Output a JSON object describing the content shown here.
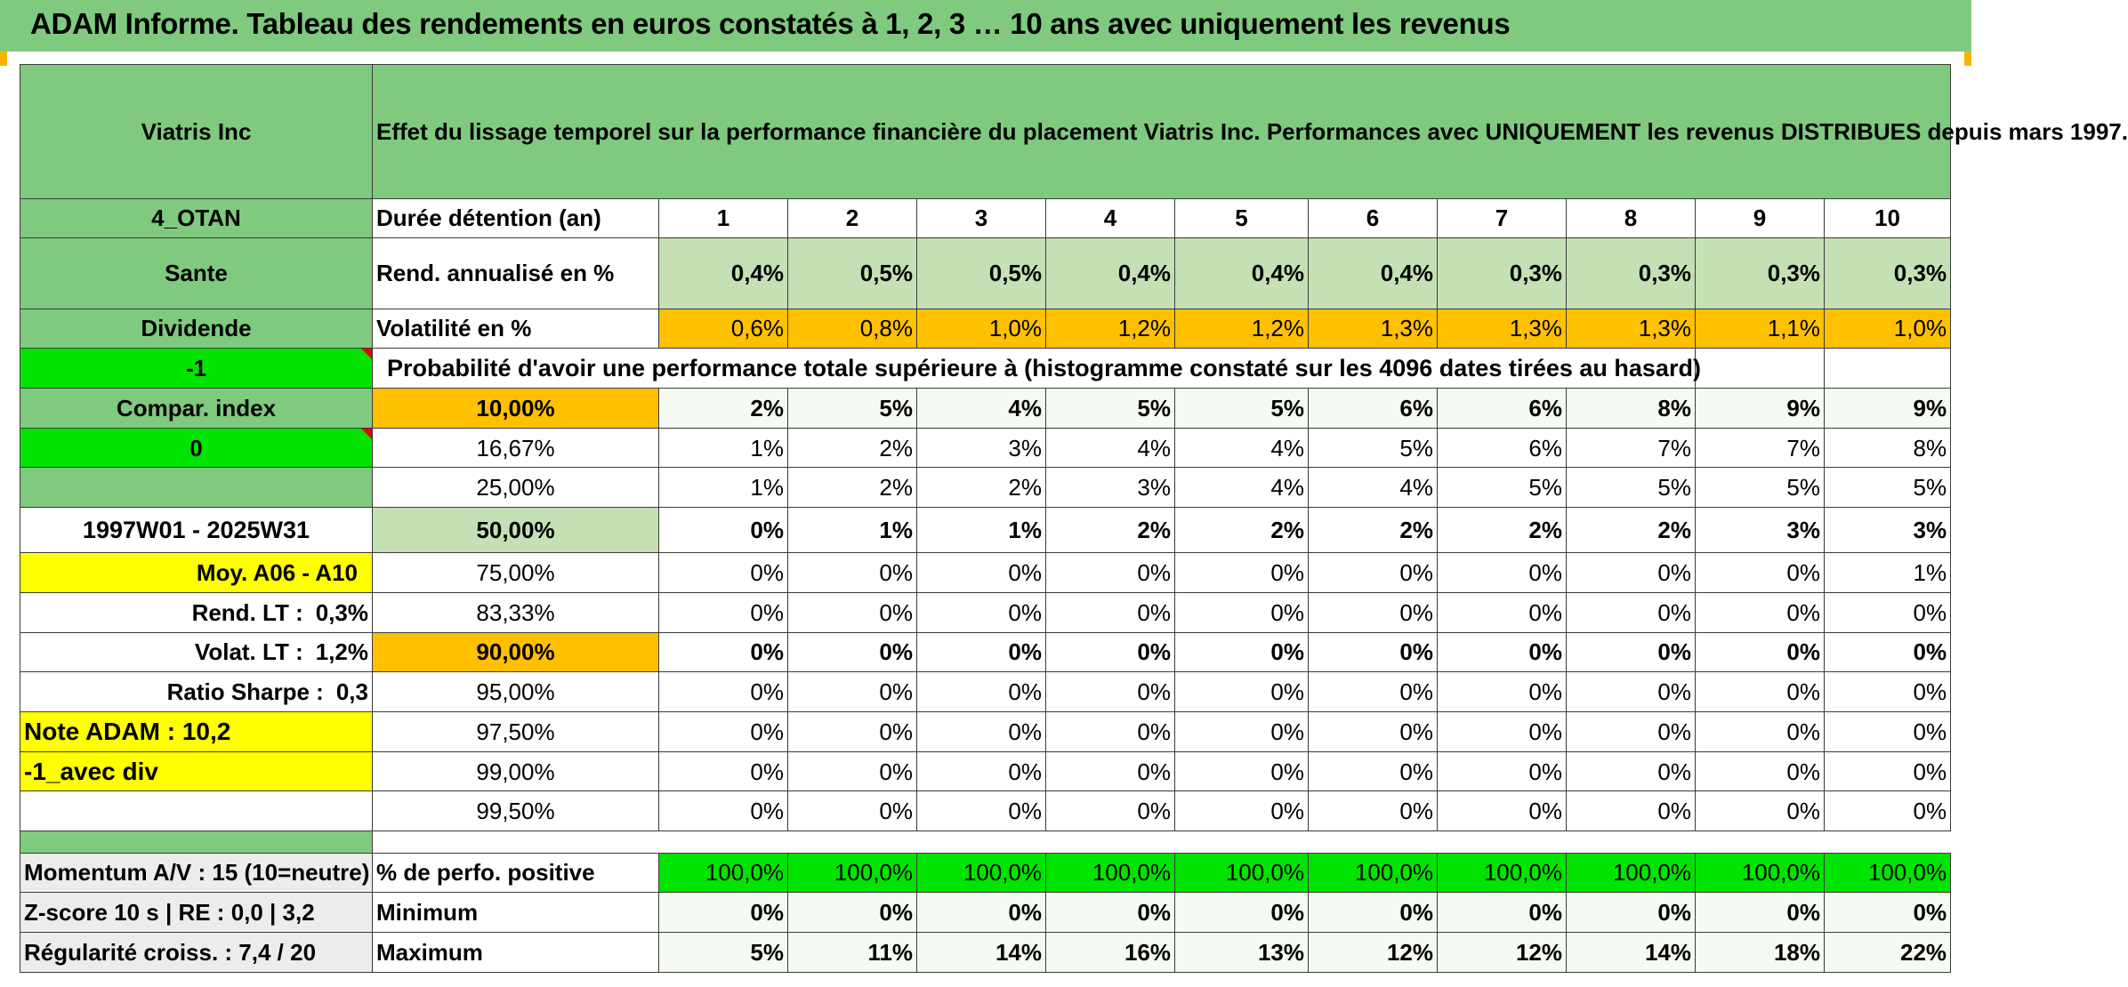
{
  "report_title": "ADAM Informe. Tableau des rendements en euros constatés à 1, 2, 3 … 10 ans avec uniquement les revenus",
  "left_panel": {
    "stock_name": "Viatris Inc",
    "code": "4_OTAN",
    "sector": "Sante",
    "type": "Dividende",
    "param_1": "-1",
    "compar_index": "Compar. index",
    "param_2": "0",
    "period": "1997W01 - 2025W31",
    "moy": "Moy. A06 - A10",
    "rend_lt_label": "Rend. LT :",
    "rend_lt_value": "0,3%",
    "volat_lt_label": "Volat. LT :",
    "volat_lt_value": "1,2%",
    "sharpe_label": "Ratio Sharpe :",
    "sharpe_value": "0,3",
    "note_adam": "Note ADAM : 10,2",
    "avec_div": "-1_avec div",
    "momentum": "Momentum A/V : 15 (10=neutre)",
    "zscore": "Z-score 10 s | RE : 0,0 | 3,2",
    "regularite": "Régularité croiss. : 7,4 / 20"
  },
  "description": "Effet du lissage temporel sur la performance financière du placement Viatris Inc. Performances avec UNIQUEMENT les revenus DISTRIBUES depuis mars 1997.",
  "rows_header": {
    "duree_label": "Durée détention (an)",
    "years": [
      "1",
      "2",
      "3",
      "4",
      "5",
      "6",
      "7",
      "8",
      "9",
      "10"
    ]
  },
  "rendement": {
    "label": "Rend. annualisé en %",
    "values": [
      "0,4%",
      "0,5%",
      "0,5%",
      "0,4%",
      "0,4%",
      "0,4%",
      "0,3%",
      "0,3%",
      "0,3%",
      "0,3%"
    ]
  },
  "volatilite": {
    "label": "Volatilité en %",
    "values": [
      "0,6%",
      "0,8%",
      "1,0%",
      "1,2%",
      "1,2%",
      "1,3%",
      "1,3%",
      "1,3%",
      "1,1%",
      "1,0%"
    ]
  },
  "probability_title": "Probabilité d'avoir une performance totale supérieure à (histogramme constaté sur les 4096 dates tirées au hasard)",
  "probability_rows": [
    {
      "threshold": "10,00%",
      "values": [
        "2%",
        "5%",
        "4%",
        "5%",
        "5%",
        "6%",
        "6%",
        "8%",
        "9%",
        "9%"
      ]
    },
    {
      "threshold": "16,67%",
      "values": [
        "1%",
        "2%",
        "3%",
        "4%",
        "4%",
        "5%",
        "6%",
        "7%",
        "7%",
        "8%"
      ]
    },
    {
      "threshold": "25,00%",
      "values": [
        "1%",
        "2%",
        "2%",
        "3%",
        "4%",
        "4%",
        "5%",
        "5%",
        "5%",
        "5%"
      ]
    },
    {
      "threshold": "50,00%",
      "values": [
        "0%",
        "1%",
        "1%",
        "2%",
        "2%",
        "2%",
        "2%",
        "2%",
        "3%",
        "3%"
      ]
    },
    {
      "threshold": "75,00%",
      "values": [
        "0%",
        "0%",
        "0%",
        "0%",
        "0%",
        "0%",
        "0%",
        "0%",
        "0%",
        "1%"
      ]
    },
    {
      "threshold": "83,33%",
      "values": [
        "0%",
        "0%",
        "0%",
        "0%",
        "0%",
        "0%",
        "0%",
        "0%",
        "0%",
        "0%"
      ]
    },
    {
      "threshold": "90,00%",
      "values": [
        "0%",
        "0%",
        "0%",
        "0%",
        "0%",
        "0%",
        "0%",
        "0%",
        "0%",
        "0%"
      ]
    },
    {
      "threshold": "95,00%",
      "values": [
        "0%",
        "0%",
        "0%",
        "0%",
        "0%",
        "0%",
        "0%",
        "0%",
        "0%",
        "0%"
      ]
    },
    {
      "threshold": "97,50%",
      "values": [
        "0%",
        "0%",
        "0%",
        "0%",
        "0%",
        "0%",
        "0%",
        "0%",
        "0%",
        "0%"
      ]
    },
    {
      "threshold": "99,00%",
      "values": [
        "0%",
        "0%",
        "0%",
        "0%",
        "0%",
        "0%",
        "0%",
        "0%",
        "0%",
        "0%"
      ]
    },
    {
      "threshold": "99,50%",
      "values": [
        "0%",
        "0%",
        "0%",
        "0%",
        "0%",
        "0%",
        "0%",
        "0%",
        "0%",
        "0%"
      ]
    }
  ],
  "positive": {
    "label": "% de perfo. positive",
    "values": [
      "100,0%",
      "100,0%",
      "100,0%",
      "100,0%",
      "100,0%",
      "100,0%",
      "100,0%",
      "100,0%",
      "100,0%",
      "100,0%"
    ]
  },
  "minimum": {
    "label": "Minimum",
    "values": [
      "0%",
      "0%",
      "0%",
      "0%",
      "0%",
      "0%",
      "0%",
      "0%",
      "0%",
      "0%"
    ]
  },
  "maximum": {
    "label": "Maximum",
    "values": [
      "5%",
      "11%",
      "14%",
      "16%",
      "13%",
      "12%",
      "12%",
      "14%",
      "18%",
      "22%"
    ]
  },
  "colors": {
    "header_green": "#7fca7f",
    "light_green": "#c5e0b4",
    "orange": "#ffc000",
    "bright_green": "#00e400",
    "yellow": "#ffff00",
    "red_text": "#e8000b"
  }
}
